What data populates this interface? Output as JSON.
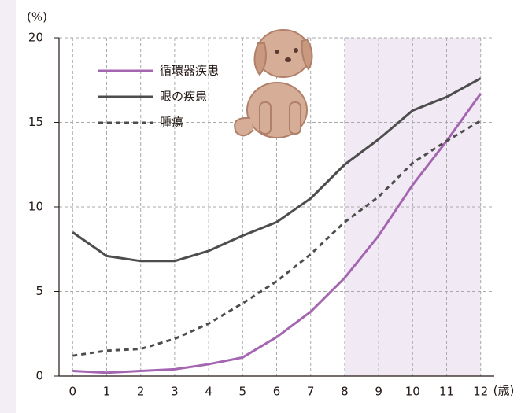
{
  "chart_data": {
    "type": "line",
    "x": [
      0,
      1,
      2,
      3,
      4,
      5,
      6,
      7,
      8,
      9,
      10,
      11,
      12
    ],
    "xlim": [
      -0.4,
      12.4
    ],
    "xticks": [
      0,
      1,
      2,
      3,
      4,
      5,
      6,
      7,
      8,
      9,
      10,
      11,
      12
    ],
    "ylim": [
      0,
      20
    ],
    "yticks": [
      0,
      5,
      10,
      15,
      20
    ],
    "x_label": "(歳)",
    "y_label": "(%)",
    "grid": true,
    "shaded_xrange": [
      8,
      12
    ],
    "shade_color": "#f1e9f4",
    "legend": "upper-left",
    "series": [
      {
        "name": "循環器疾患",
        "color": "#a466b0",
        "line_style": "solid",
        "values": [
          0.3,
          0.2,
          0.3,
          0.4,
          0.7,
          1.1,
          2.3,
          3.8,
          5.8,
          8.3,
          11.3,
          13.9,
          16.7
        ]
      },
      {
        "name": "眼の疾患",
        "color": "#4d4d4d",
        "line_style": "solid",
        "values": [
          8.5,
          7.1,
          6.8,
          6.8,
          7.4,
          8.3,
          9.1,
          10.5,
          12.5,
          14.0,
          15.7,
          16.5,
          17.6
        ]
      },
      {
        "name": "腫瘍",
        "color": "#4d4d4d",
        "line_style": "dashed",
        "values": [
          1.2,
          1.5,
          1.6,
          2.2,
          3.1,
          4.3,
          5.6,
          7.2,
          9.1,
          10.6,
          12.6,
          13.9,
          15.1
        ]
      }
    ]
  }
}
